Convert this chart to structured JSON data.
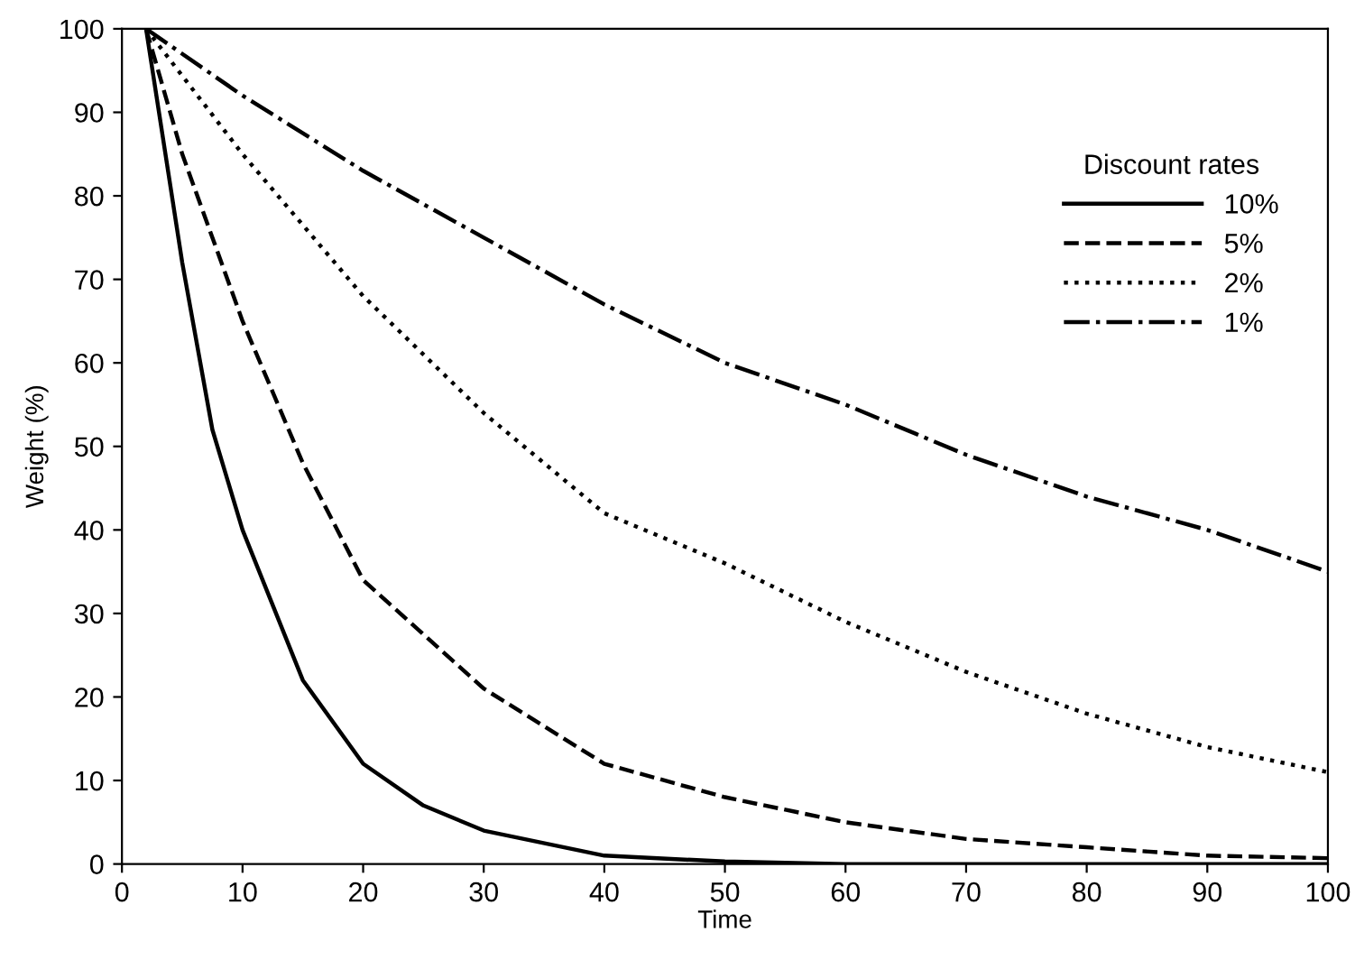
{
  "chart_data": {
    "type": "line",
    "xlabel": "Time",
    "ylabel": "Weight (%)",
    "legend_title": "Discount rates",
    "legend": "top right",
    "grid": false,
    "xlim": [
      0,
      100
    ],
    "ylim": [
      0,
      100
    ],
    "xticks": [
      0,
      10,
      20,
      30,
      40,
      50,
      60,
      70,
      80,
      90,
      100
    ],
    "yticks": [
      0,
      10,
      20,
      30,
      40,
      50,
      60,
      70,
      80,
      90,
      100
    ],
    "series": [
      {
        "name": "10%",
        "color": "#000000",
        "line_style": "solid",
        "x": [
          2,
          5,
          7.5,
          10,
          15,
          20,
          25,
          30,
          40,
          50,
          60,
          70,
          80,
          90,
          100
        ],
        "values": [
          100,
          72,
          52,
          40,
          22,
          12,
          7,
          4,
          1,
          0.3,
          0,
          0,
          0,
          0,
          0
        ]
      },
      {
        "name": "5%",
        "color": "#000000",
        "line_style": "dashed",
        "x": [
          2,
          5,
          10,
          15,
          20,
          30,
          40,
          50,
          60,
          70,
          80,
          90,
          100
        ],
        "values": [
          100,
          85,
          65,
          48,
          34,
          21,
          12,
          8,
          5,
          3,
          2,
          1,
          0.7
        ]
      },
      {
        "name": "2%",
        "color": "#000000",
        "line_style": "dotted",
        "x": [
          2,
          10,
          20,
          30,
          40,
          50,
          60,
          70,
          80,
          90,
          100
        ],
        "values": [
          100,
          85,
          68,
          54,
          42,
          36,
          29,
          23,
          18,
          14,
          11
        ]
      },
      {
        "name": "1%",
        "color": "#000000",
        "line_style": "dashdot",
        "x": [
          2,
          10,
          20,
          30,
          40,
          50,
          60,
          70,
          80,
          90,
          100
        ],
        "values": [
          100,
          92,
          83,
          75,
          67,
          60,
          55,
          49,
          44,
          40,
          35
        ]
      }
    ]
  }
}
